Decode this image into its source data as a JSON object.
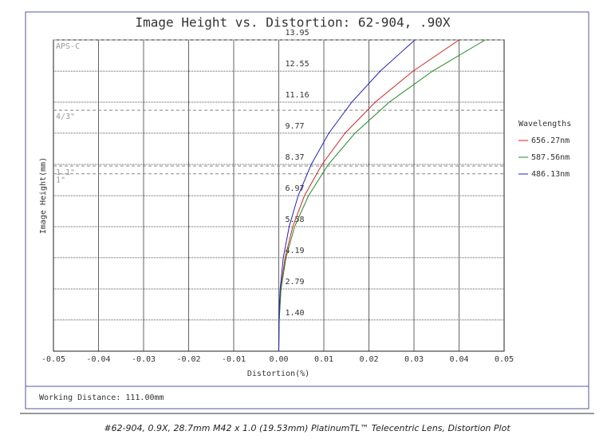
{
  "chart_data": {
    "type": "line",
    "title": "Image Height vs. Distortion: 62-904, .90X",
    "x_label": "Distortion(%)",
    "y_label": "Image Height(mm)",
    "heights": [
      0,
      1.4,
      2.79,
      4.19,
      5.58,
      6.97,
      8.37,
      9.77,
      11.16,
      12.55,
      13.95
    ],
    "series": [
      {
        "name": "656.27nm",
        "color": "#dd2222",
        "values": [
          0,
          0.0001,
          0.0004,
          0.0014,
          0.0031,
          0.0057,
          0.0096,
          0.0147,
          0.0214,
          0.0298,
          0.04
        ]
      },
      {
        "name": "587.56nm",
        "color": "#228822",
        "values": [
          0,
          0.0001,
          0.0005,
          0.0016,
          0.0035,
          0.0066,
          0.011,
          0.0169,
          0.0245,
          0.0341,
          0.0458
        ]
      },
      {
        "name": "486.13nm",
        "color": "#2222cc",
        "values": [
          0,
          0,
          0.0003,
          0.001,
          0.0023,
          0.0043,
          0.0072,
          0.0111,
          0.0162,
          0.0225,
          0.0302
        ]
      }
    ],
    "xlim": [
      -0.05,
      0.05
    ],
    "xticks": [
      -0.05,
      -0.04,
      -0.03,
      -0.02,
      -0.01,
      {
        "value": 0,
        "label": "0.00"
      },
      0.01,
      0.02,
      0.03,
      0.04,
      0.05
    ],
    "ylim": [
      0,
      13.95
    ],
    "yticks": [
      {
        "value": 1.4,
        "label": "1.40"
      },
      2.79,
      4.19,
      5.58,
      6.97,
      8.37,
      9.77,
      11.16,
      12.55,
      13.95
    ],
    "sensors": [
      {
        "label": "APS-C",
        "value": 13.95
      },
      {
        "label": "4/3\"",
        "value": 10.8
      },
      {
        "label": "1.1\"",
        "value": 8.3
      },
      {
        "label": "1\"",
        "value": 7.95
      }
    ],
    "legend_title": "Wavelengths",
    "grid": true,
    "footer": "Working Distance: 111.00mm",
    "caption": "#62-904, 0.9X, 28.7mm M42 x 1.0 (19.53mm) PlatinumTL™ Telecentric Lens, Distortion Plot"
  }
}
